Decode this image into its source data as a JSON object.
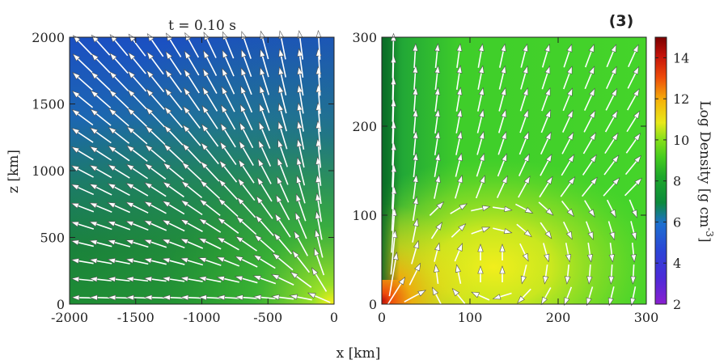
{
  "figure": {
    "panel_tag": "(3)",
    "time_label": "t = 0.10 s",
    "shared_xlabel": "x [km]"
  },
  "chart_data": [
    {
      "type": "heatmap",
      "subtitle": "t = 0.10 s",
      "xlabel": "",
      "ylabel": "z [km]",
      "xlim": [
        -2000,
        0
      ],
      "ylim": [
        0,
        2000
      ],
      "xticks": [
        -2000,
        -1500,
        -1000,
        -500,
        0
      ],
      "yticks": [
        0,
        500,
        1000,
        1500,
        2000
      ],
      "field": "log density with velocity arrows",
      "notes": "outflow arrows pointing up and to the left, high density near origin"
    },
    {
      "type": "heatmap",
      "xlabel": "",
      "ylabel": "",
      "xlim": [
        0,
        300
      ],
      "ylim": [
        0,
        300
      ],
      "xticks": [
        0,
        100,
        200,
        300
      ],
      "yticks": [
        0,
        100,
        200,
        300
      ],
      "field": "log density with velocity arrows (zoom)",
      "notes": "dense torus near (150,50), arrows circulate"
    }
  ],
  "colorbar": {
    "label": "Log Density [g cm",
    "label_exp": "-3",
    "label_close": "]",
    "range": [
      2,
      15
    ],
    "ticks": [
      2,
      4,
      6,
      8,
      10,
      12,
      14
    ],
    "colors": [
      "#8a1fd0",
      "#2b35d6",
      "#1d6fd0",
      "#0c8a3c",
      "#33c21f",
      "#6fe21a",
      "#e8e81a",
      "#f5a50a",
      "#ee3b0a",
      "#8b0000"
    ]
  }
}
